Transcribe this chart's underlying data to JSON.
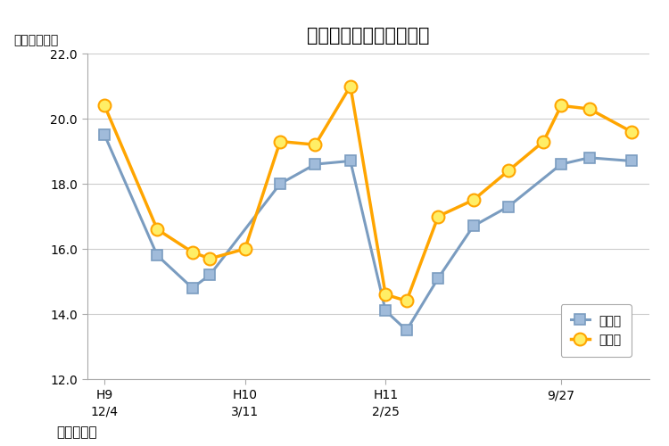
{
  "title": "床下正角材含水率の推移",
  "ylabel": "含水率（％）",
  "xlabel_label": "測定年月日",
  "ylim": [
    12.0,
    22.0
  ],
  "yticks": [
    12.0,
    14.0,
    16.0,
    18.0,
    20.0,
    22.0
  ],
  "xtick_labels": [
    "H9\n12/4",
    "H10\n3/11",
    "H11\n2/25",
    "9/27"
  ],
  "x_tick_positions": [
    0,
    4,
    8,
    13
  ],
  "series1_name": "対象区",
  "series1_color": "#FFA500",
  "series1_marker_face": "#FFEE66",
  "series1_x": [
    0,
    1.5,
    2.5,
    3.0,
    4.0,
    5.0,
    6.0,
    7.0,
    8.0,
    8.6,
    9.5,
    10.5,
    11.5,
    12.5,
    13.0,
    13.8,
    15.0
  ],
  "series1_y": [
    20.4,
    16.6,
    15.9,
    15.7,
    16.0,
    19.3,
    19.2,
    21.0,
    14.6,
    14.4,
    17.0,
    17.5,
    18.4,
    19.3,
    20.4,
    20.3,
    19.6
  ],
  "series2_name": "竹炭区",
  "series2_color": "#7A9CC0",
  "series2_marker_face": "#A0BBDA",
  "series2_x": [
    0,
    1.5,
    2.5,
    3.0,
    5.0,
    6.0,
    7.0,
    8.0,
    8.6,
    9.5,
    10.5,
    11.5,
    13.0,
    13.8,
    15.0
  ],
  "series2_y": [
    19.5,
    15.8,
    14.8,
    15.2,
    18.0,
    18.6,
    18.7,
    14.1,
    13.5,
    15.1,
    16.7,
    17.3,
    18.6,
    18.8,
    18.7
  ],
  "xlim": [
    -0.5,
    15.5
  ],
  "background_color": "#ffffff",
  "plot_background": "#ffffff",
  "title_fontsize": 15,
  "tick_fontsize": 10,
  "ylabel_fontsize": 10,
  "legend_fontsize": 10
}
